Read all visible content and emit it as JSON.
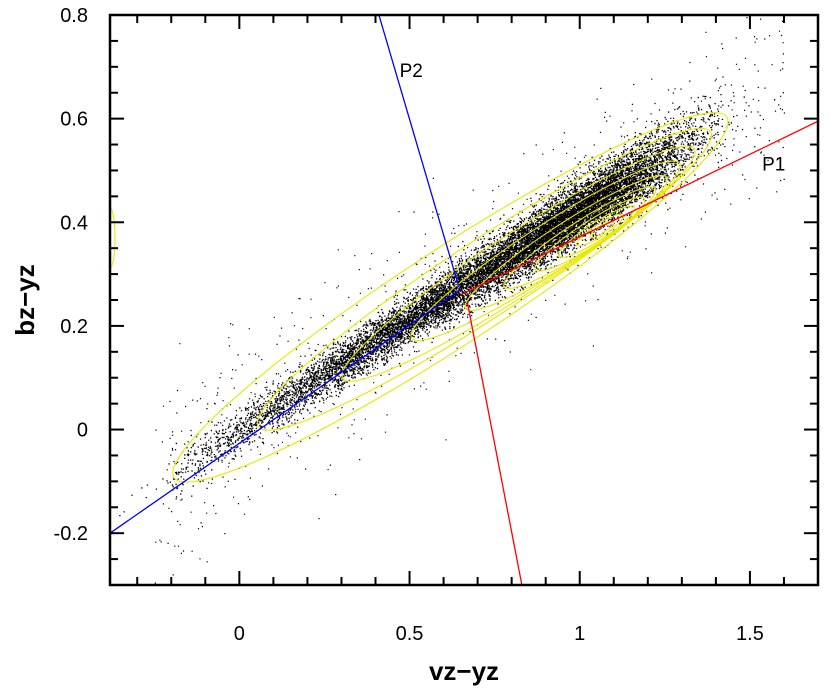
{
  "chart_data": {
    "type": "scatter",
    "xlabel": "vz−yz",
    "ylabel": "bz−yz",
    "xlim": [
      -0.38,
      1.7
    ],
    "ylim": [
      -0.3,
      0.8
    ],
    "xticks": [
      0,
      0.5,
      1,
      1.5
    ],
    "xtick_labels": [
      "0",
      "0.5",
      "1",
      "1.5"
    ],
    "yticks": [
      -0.2,
      0,
      0.2,
      0.4,
      0.6,
      0.8
    ],
    "ytick_labels": [
      "-0.2",
      "0",
      "0.2",
      "0.4",
      "0.6",
      "0.8"
    ],
    "grid": false,
    "legend": "none",
    "point_color": "#000000",
    "contour_color": "#e8e800",
    "scatter_cloud": {
      "description_points": [
        [
          0.0,
          0.0
        ],
        [
          0.3,
          0.13
        ],
        [
          0.65,
          0.27
        ],
        [
          1.05,
          0.38
        ],
        [
          1.3,
          0.47
        ]
      ],
      "core": [
        1.05,
        0.38
      ]
    },
    "lines": [
      {
        "name": "P1",
        "color": "#ff0000",
        "segments": [
          [
            [
              0.65,
              0.26
            ],
            [
              1.7,
              0.595
            ]
          ],
          [
            [
              0.67,
              0.245
            ],
            [
              0.83,
              -0.3
            ]
          ]
        ]
      },
      {
        "name": "P2",
        "color": "#0000ff",
        "segments": [
          [
            [
              -0.38,
              -0.2
            ],
            [
              0.65,
              0.27
            ]
          ],
          [
            [
              0.41,
              0.8
            ],
            [
              0.645,
              0.275
            ]
          ]
        ]
      }
    ],
    "annotations": [
      {
        "text": "P1",
        "x": 1.57,
        "y": 0.5
      },
      {
        "text": "P2",
        "x": 0.505,
        "y": 0.68
      }
    ]
  }
}
